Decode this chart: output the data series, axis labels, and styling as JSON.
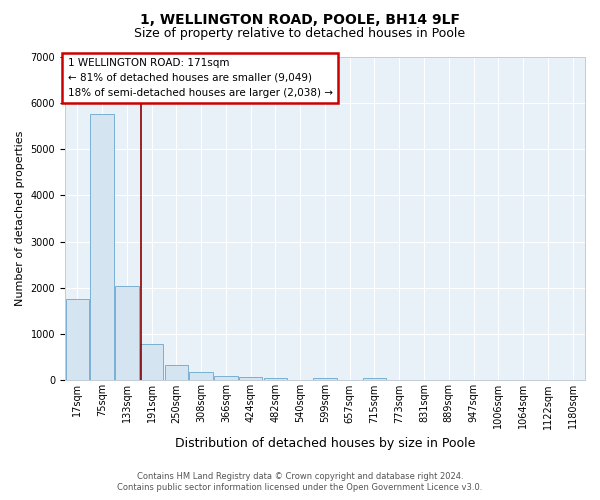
{
  "title": "1, WELLINGTON ROAD, POOLE, BH14 9LF",
  "subtitle": "Size of property relative to detached houses in Poole",
  "xlabel": "Distribution of detached houses by size in Poole",
  "ylabel": "Number of detached properties",
  "bar_labels": [
    "17sqm",
    "75sqm",
    "133sqm",
    "191sqm",
    "250sqm",
    "308sqm",
    "366sqm",
    "424sqm",
    "482sqm",
    "540sqm",
    "599sqm",
    "657sqm",
    "715sqm",
    "773sqm",
    "831sqm",
    "889sqm",
    "947sqm",
    "1006sqm",
    "1064sqm",
    "1122sqm",
    "1180sqm"
  ],
  "bar_values": [
    1750,
    5750,
    2050,
    780,
    330,
    185,
    95,
    75,
    55,
    18,
    55,
    8,
    55,
    0,
    0,
    0,
    0,
    0,
    0,
    0,
    0
  ],
  "bar_color": "#d4e4f0",
  "bar_edge_color": "#7ab0d4",
  "vline_x": 2.58,
  "vline_color": "#8b0000",
  "annotation_text": "1 WELLINGTON ROAD: 171sqm\n← 81% of detached houses are smaller (9,049)\n18% of semi-detached houses are larger (2,038) →",
  "annotation_box_color": "#cc0000",
  "ylim": [
    0,
    7000
  ],
  "yticks": [
    0,
    1000,
    2000,
    3000,
    4000,
    5000,
    6000,
    7000
  ],
  "bg_color": "#e8f0f8",
  "grid_color": "#ffffff",
  "footer": "Contains HM Land Registry data © Crown copyright and database right 2024.\nContains public sector information licensed under the Open Government Licence v3.0.",
  "title_fontsize": 10,
  "subtitle_fontsize": 9,
  "ylabel_fontsize": 8,
  "xlabel_fontsize": 9,
  "tick_fontsize": 7,
  "footer_fontsize": 6,
  "ann_fontsize": 7.5
}
